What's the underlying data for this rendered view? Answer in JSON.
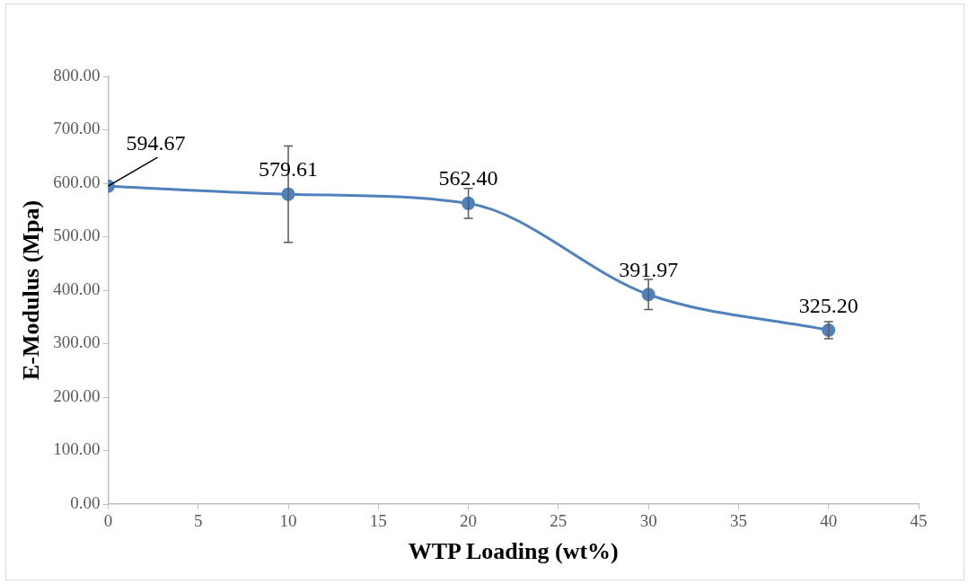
{
  "chart_data": {
    "type": "line",
    "xlabel": "WTP Loading (wt%)",
    "ylabel": "E-Modulus (Mpa)",
    "x": [
      0,
      10,
      20,
      30,
      40
    ],
    "series": [
      {
        "color": "#4f81bd",
        "values": [
          594.67,
          579.61,
          562.4,
          391.97,
          325.2
        ],
        "errors": [
          null,
          90,
          28,
          28,
          16
        ]
      }
    ],
    "value_labels": [
      "594.67",
      "579.61",
      "562.40",
      "391.97",
      "325.20"
    ],
    "xlim": [
      0,
      45
    ],
    "xticks": [
      0,
      5,
      10,
      15,
      20,
      25,
      30,
      35,
      40,
      45
    ],
    "ylim": [
      0,
      800
    ],
    "yticks": [
      {
        "value": 0,
        "label": "0.00"
      },
      {
        "value": 100,
        "label": "100.00"
      },
      {
        "value": 200,
        "label": "200.00"
      },
      {
        "value": 300,
        "label": "300.00"
      },
      {
        "value": 400,
        "label": "400.00"
      },
      {
        "value": 500,
        "label": "500.00"
      },
      {
        "value": 600,
        "label": "600.00"
      },
      {
        "value": 700,
        "label": "700.00"
      },
      {
        "value": 800,
        "label": "800.00"
      }
    ],
    "grid": false,
    "legend": false,
    "marker": "circle",
    "line_style": "solid"
  }
}
